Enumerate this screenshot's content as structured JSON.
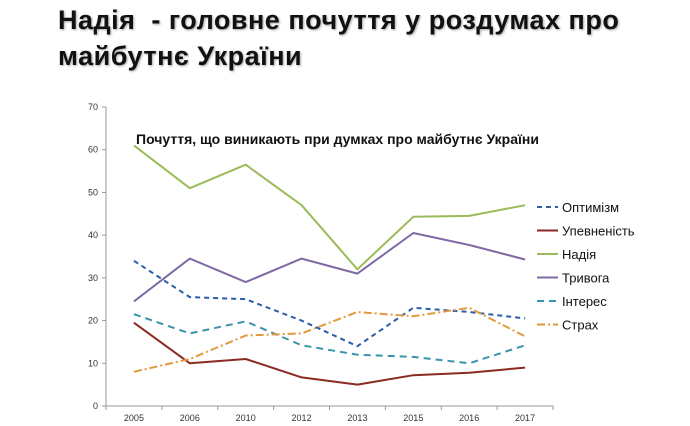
{
  "slide": {
    "title_line1": "Надія  - головне почуття у роздумах про",
    "title_line2": "майбутнє України"
  },
  "chart_data": {
    "type": "line",
    "title": "Почуття, що виникають при думках про майбутнє України",
    "x": [
      "2005",
      "2006",
      "2010",
      "2012",
      "2013",
      "2015",
      "2016",
      "2017"
    ],
    "ylim": [
      0,
      70
    ],
    "yticks": [
      0,
      10,
      20,
      30,
      40,
      50,
      60,
      70
    ],
    "grid": false,
    "legend": "right",
    "series": [
      {
        "name": "Оптимізм",
        "color": "#2a5ea8",
        "dash": "5,4",
        "values": [
          34,
          25.5,
          25,
          20,
          14,
          23,
          22,
          20.5
        ]
      },
      {
        "name": "Упевненість",
        "color": "#8b2a22",
        "dash": "",
        "values": [
          19.5,
          10,
          11,
          6.7,
          5,
          7.2,
          7.8,
          9
        ]
      },
      {
        "name": "Надія",
        "color": "#9bbb59",
        "dash": "",
        "values": [
          61,
          51,
          56.5,
          47,
          32,
          44.3,
          44.5,
          47
        ]
      },
      {
        "name": "Тривога",
        "color": "#7f6aa5",
        "dash": "",
        "values": [
          24.5,
          34.5,
          29,
          34.5,
          31,
          40.5,
          37.7,
          34.3
        ]
      },
      {
        "name": "Інтерес",
        "color": "#3a94ad",
        "dash": "7,5",
        "values": [
          21.5,
          17,
          19.8,
          14.2,
          12,
          11.5,
          10,
          14.2
        ]
      },
      {
        "name": "Страх",
        "color": "#e3993f",
        "dash": "8,3,2,3",
        "values": [
          8,
          11,
          16.5,
          17,
          22,
          21,
          23,
          16.3
        ]
      }
    ]
  }
}
